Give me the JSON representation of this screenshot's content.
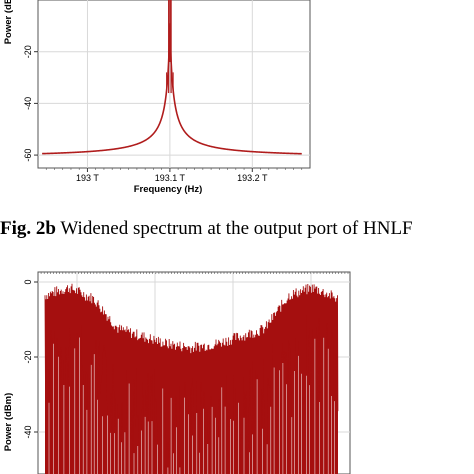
{
  "chart_data": [
    {
      "type": "line",
      "title": "",
      "xlabel": "Frequency (Hz)",
      "ylabel": "Power (dBm)",
      "xticks": [
        "193 T",
        "193.1 T",
        "193.2 T"
      ],
      "yticks": [
        "-20",
        "-40",
        "-60"
      ],
      "xlim": [
        192.94,
        193.27
      ],
      "ylim": [
        -65,
        0
      ],
      "grid": true,
      "series": [
        {
          "color": "#b01c1c",
          "x": [
            192.95,
            193.0,
            193.05,
            193.08,
            193.09,
            193.095,
            193.098,
            193.1,
            193.102,
            193.105,
            193.11,
            193.12,
            193.15,
            193.2,
            193.25
          ],
          "values": [
            -60.5,
            -59.5,
            -55,
            -48,
            -40,
            -30,
            -15,
            -8,
            -15,
            -30,
            -40,
            -48,
            -55,
            -59.5,
            -60.5
          ]
        }
      ]
    },
    {
      "type": "line",
      "title": "",
      "xlabel": "",
      "ylabel": "Power (dBm)",
      "yticks": [
        "0",
        "-20",
        "-40"
      ],
      "ylim": [
        -50,
        2
      ],
      "grid": true,
      "series": [
        {
          "color": "#a50f0f",
          "envelope_upper_dbm": [
            -5,
            -3,
            -6,
            -14,
            -16,
            -18,
            -19,
            -18,
            -16,
            -14,
            -5,
            -3,
            -6
          ],
          "envelope_lower_dbm": [
            -50,
            -50,
            -50,
            -50,
            -50,
            -50,
            -50,
            -50,
            -50,
            -50,
            -50,
            -50,
            -50
          ]
        }
      ]
    }
  ],
  "caption": {
    "label": "Fig. 2b",
    "text": "Widened spectrum at the output port of HNLF"
  }
}
